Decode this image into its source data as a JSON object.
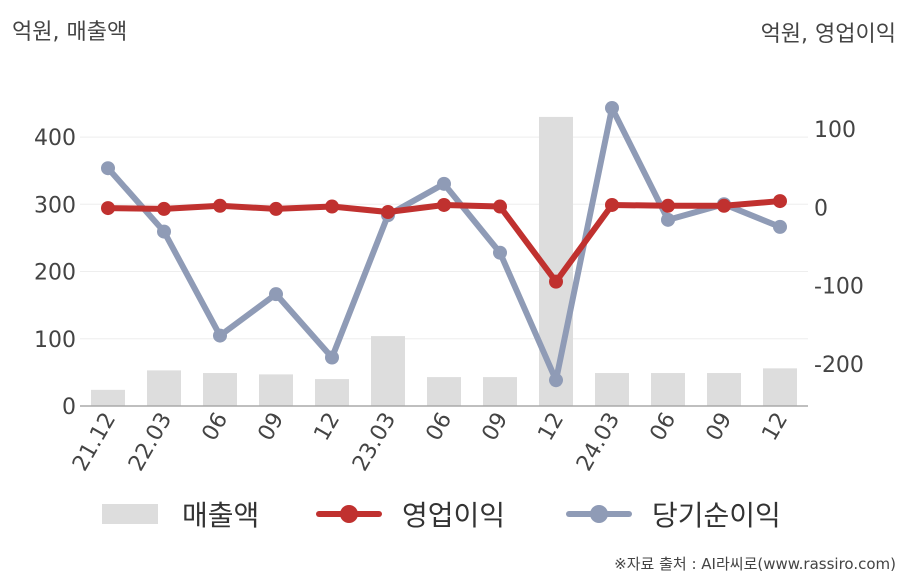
{
  "unit_left": "억원, 매출액",
  "unit_right": "억원, 영업이익",
  "source": "※자료 출처 : AI라씨로(www.rassiro.com)",
  "legend": {
    "bar": "매출액",
    "op": "영업이익",
    "net": "당기순이익"
  },
  "colors": {
    "bar": "#dddddd",
    "op": "#c0312f",
    "net": "#8f9bb6",
    "axis": "#aaaaaa",
    "grid": "#eeeeee"
  },
  "chart_data": {
    "type": "bar+line",
    "categories": [
      "21.12",
      "22.03",
      "06",
      "09",
      "12",
      "23.03",
      "06",
      "09",
      "12",
      "24.03",
      "06",
      "09",
      "12"
    ],
    "series": [
      {
        "name": "매출액",
        "axis": "left",
        "type": "bar",
        "values": [
          24,
          53,
          49,
          47,
          40,
          104,
          43,
          43,
          430,
          49,
          49,
          49,
          56
        ]
      },
      {
        "name": "영업이익",
        "axis": "right",
        "type": "line",
        "values": [
          -1,
          -2,
          2,
          -2,
          1,
          -6,
          3,
          1,
          -95,
          3,
          2,
          2,
          8
        ]
      },
      {
        "name": "당기순이익",
        "axis": "right",
        "type": "line",
        "values": [
          50,
          -31,
          -164,
          -111,
          -192,
          -10,
          30,
          -58,
          -221,
          127,
          -16,
          4,
          -25
        ]
      }
    ],
    "left_axis": {
      "ylim": [
        0,
        470
      ],
      "ticks": [
        0,
        100,
        200,
        300,
        400
      ]
    },
    "right_axis": {
      "ylim": [
        -254,
        150
      ],
      "ticks": [
        -200,
        -100,
        0,
        100
      ]
    },
    "grid": true,
    "legend_position": "bottom"
  }
}
